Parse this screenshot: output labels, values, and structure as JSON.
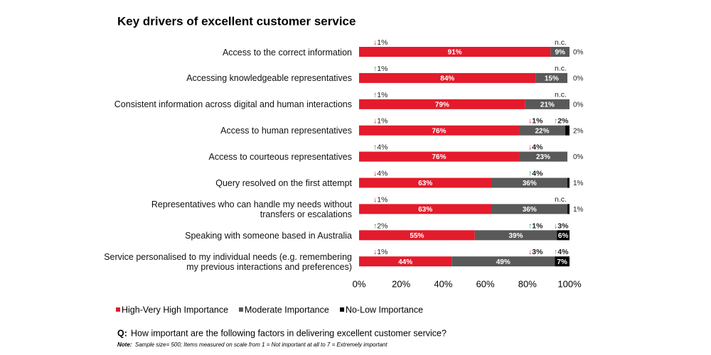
{
  "chart_data": {
    "type": "stacked_bar_horizontal",
    "title": "Key drivers of excellent customer service",
    "categories": [
      "Access to the correct information",
      "Accessing knowledgeable representatives",
      "Consistent information across digital and human interactions",
      "Access to human representatives",
      "Access to courteous representatives",
      "Query resolved on the first attempt",
      "Representatives who can handle my needs without\ntransfers or escalations",
      "Speaking with someone based in Australia",
      "Service personalised to my individual needs (e.g. remembering\nmy previous interactions and preferences)"
    ],
    "series": [
      {
        "name": "High-Very High Importance",
        "color": "#e31b2c",
        "values": [
          91,
          84,
          79,
          76,
          76,
          63,
          63,
          55,
          44
        ],
        "value_labels": [
          "91%",
          "84%",
          "79%",
          "76%",
          "76%",
          "63%",
          "63%",
          "55%",
          "44%"
        ],
        "changes": [
          "↓1%",
          "↑1%",
          "↑1%",
          "↓1%",
          "↑4%",
          "↓4%",
          "↓1%",
          "↑2%",
          "↓1%"
        ]
      },
      {
        "name": "Moderate Importance",
        "color": "#595959",
        "values": [
          9,
          15,
          21,
          22,
          23,
          36,
          36,
          39,
          49
        ],
        "value_labels": [
          "9%",
          "15%",
          "21%",
          "22%",
          "23%",
          "36%",
          "36%",
          "39%",
          "49%"
        ],
        "changes": [
          "n.c.",
          "n.c.",
          "n.c.",
          "↓1%",
          "↓4%",
          "↑4%",
          "n.c.",
          "↑1%",
          "↓3%"
        ]
      },
      {
        "name": "No-Low Importance",
        "color": "#000000",
        "values": [
          0,
          0,
          0,
          2,
          0,
          1,
          1,
          6,
          7
        ],
        "value_labels": [
          "0%",
          "0%",
          "0%",
          "2%",
          "0%",
          "1%",
          "1%",
          "6%",
          "7%"
        ],
        "changes": [
          null,
          null,
          null,
          "↑2%",
          null,
          null,
          null,
          "↓3%",
          "↑4%"
        ]
      }
    ],
    "xlim": [
      0,
      100
    ],
    "xticks": [
      {
        "value": 0,
        "label": "0%"
      },
      {
        "value": 20,
        "label": "20%"
      },
      {
        "value": 40,
        "label": "40%"
      },
      {
        "value": 60,
        "label": "60%"
      },
      {
        "value": 80,
        "label": "80%"
      },
      {
        "value": 100,
        "label": "100%"
      }
    ],
    "legend": "bottom-left",
    "question_label": "Q:",
    "question": "How important are the following factors in delivering excellent customer service?",
    "note_label": "Note:",
    "note": "Sample size= 500; Items measured on scale from 1 = Not important at all to 7 = Extremely important"
  }
}
